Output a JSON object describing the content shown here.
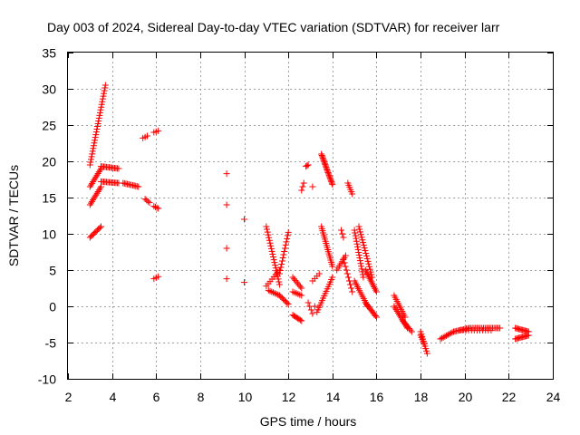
{
  "chart_data": {
    "type": "scatter",
    "title": "Day 003 of 2024, Sidereal Day-to-day VTEC variation (SDTVAR) for receiver larr",
    "xlabel": "GPS time / hours",
    "ylabel": "SDTVAR / TECUs",
    "xlim": [
      2,
      24
    ],
    "ylim": [
      -10,
      35
    ],
    "xticks": [
      2,
      4,
      6,
      8,
      10,
      12,
      14,
      16,
      18,
      20,
      22,
      24
    ],
    "yticks": [
      -10,
      -5,
      0,
      5,
      10,
      15,
      20,
      25,
      30,
      35
    ],
    "grid": true,
    "marker": "+",
    "color": "#ff0000",
    "segments": [
      {
        "from": [
          3.0,
          19.5
        ],
        "to": [
          3.7,
          30.5
        ],
        "n": 30
      },
      {
        "from": [
          3.0,
          16.5
        ],
        "to": [
          3.5,
          19.0
        ],
        "n": 12
      },
      {
        "from": [
          3.5,
          19.3
        ],
        "to": [
          4.3,
          19.0
        ],
        "n": 14
      },
      {
        "from": [
          3.0,
          14.0
        ],
        "to": [
          3.5,
          16.5
        ],
        "n": 12
      },
      {
        "from": [
          3.5,
          17.2
        ],
        "to": [
          4.3,
          17.0
        ],
        "n": 14
      },
      {
        "from": [
          4.5,
          17.0
        ],
        "to": [
          5.2,
          16.5
        ],
        "n": 12
      },
      {
        "from": [
          3.0,
          9.5
        ],
        "to": [
          3.5,
          11.0
        ],
        "n": 10
      },
      {
        "from": [
          5.4,
          23.2
        ],
        "to": [
          5.6,
          23.5
        ],
        "n": 3
      },
      {
        "from": [
          5.9,
          24.0
        ],
        "to": [
          6.1,
          24.2
        ],
        "n": 3
      },
      {
        "from": [
          5.5,
          14.8
        ],
        "to": [
          5.7,
          14.3
        ],
        "n": 4
      },
      {
        "from": [
          5.9,
          13.8
        ],
        "to": [
          6.1,
          13.5
        ],
        "n": 4
      },
      {
        "from": [
          5.9,
          3.8
        ],
        "to": [
          6.1,
          4.1
        ],
        "n": 3
      },
      {
        "from": [
          11.0,
          11.0
        ],
        "to": [
          11.6,
          3.0
        ],
        "n": 22
      },
      {
        "from": [
          11.0,
          2.8
        ],
        "to": [
          11.6,
          5.0
        ],
        "n": 8
      },
      {
        "from": [
          11.1,
          2.2
        ],
        "to": [
          11.6,
          1.5
        ],
        "n": 8
      },
      {
        "from": [
          11.6,
          4.5
        ],
        "to": [
          12.0,
          10.2
        ],
        "n": 14
      },
      {
        "from": [
          11.6,
          1.5
        ],
        "to": [
          12.0,
          0.3
        ],
        "n": 8
      },
      {
        "from": [
          12.2,
          4.0
        ],
        "to": [
          12.6,
          2.5
        ],
        "n": 8
      },
      {
        "from": [
          12.2,
          -1.2
        ],
        "to": [
          12.6,
          -2.0
        ],
        "n": 8
      },
      {
        "from": [
          12.2,
          2.0
        ],
        "to": [
          12.6,
          1.5
        ],
        "n": 6
      },
      {
        "from": [
          12.6,
          16.0
        ],
        "to": [
          12.7,
          17.0
        ],
        "n": 3
      },
      {
        "from": [
          12.8,
          19.3
        ],
        "to": [
          12.9,
          19.5
        ],
        "n": 3
      },
      {
        "from": [
          12.9,
          0.5
        ],
        "to": [
          13.1,
          -1.0
        ],
        "n": 4
      },
      {
        "from": [
          13.1,
          3.5
        ],
        "to": [
          13.4,
          4.5
        ],
        "n": 4
      },
      {
        "from": [
          13.5,
          21.0
        ],
        "to": [
          14.0,
          16.8
        ],
        "n": 24
      },
      {
        "from": [
          13.5,
          11.0
        ],
        "to": [
          14.0,
          5.5
        ],
        "n": 20
      },
      {
        "from": [
          13.3,
          -0.8
        ],
        "to": [
          14.0,
          4.0
        ],
        "n": 16
      },
      {
        "from": [
          14.2,
          5.0
        ],
        "to": [
          14.6,
          7.0
        ],
        "n": 8
      },
      {
        "from": [
          14.5,
          6.5
        ],
        "to": [
          14.9,
          2.0
        ],
        "n": 10
      },
      {
        "from": [
          14.7,
          17.0
        ],
        "to": [
          14.9,
          15.5
        ],
        "n": 6
      },
      {
        "from": [
          14.4,
          10.5
        ],
        "to": [
          14.5,
          9.5
        ],
        "n": 3
      },
      {
        "from": [
          15.0,
          10.5
        ],
        "to": [
          15.4,
          4.0
        ],
        "n": 18
      },
      {
        "from": [
          15.2,
          11.0
        ],
        "to": [
          15.8,
          4.0
        ],
        "n": 20
      },
      {
        "from": [
          15.0,
          3.5
        ],
        "to": [
          15.6,
          0.0
        ],
        "n": 14
      },
      {
        "from": [
          15.5,
          5.0
        ],
        "to": [
          16.0,
          2.0
        ],
        "n": 14
      },
      {
        "from": [
          15.5,
          0.5
        ],
        "to": [
          16.0,
          -1.5
        ],
        "n": 12
      },
      {
        "from": [
          16.8,
          0.0
        ],
        "to": [
          17.4,
          -3.0
        ],
        "n": 14
      },
      {
        "from": [
          16.8,
          1.5
        ],
        "to": [
          17.3,
          -1.5
        ],
        "n": 12
      },
      {
        "from": [
          17.2,
          -2.0
        ],
        "to": [
          17.6,
          -3.5
        ],
        "n": 8
      },
      {
        "from": [
          18.0,
          -3.5
        ],
        "to": [
          18.3,
          -6.5
        ],
        "n": 10
      },
      {
        "from": [
          18.0,
          -4.0
        ],
        "to": [
          18.2,
          -5.5
        ],
        "n": 6
      },
      {
        "from": [
          18.9,
          -4.5
        ],
        "to": [
          19.5,
          -3.5
        ],
        "n": 10
      },
      {
        "from": [
          19.5,
          -3.5
        ],
        "to": [
          20.2,
          -3.0
        ],
        "n": 12
      },
      {
        "from": [
          20.2,
          -3.0
        ],
        "to": [
          21.0,
          -3.0
        ],
        "n": 12
      },
      {
        "from": [
          21.0,
          -3.0
        ],
        "to": [
          21.6,
          -3.0
        ],
        "n": 10
      },
      {
        "from": [
          19.8,
          -3.3
        ],
        "to": [
          21.2,
          -3.3
        ],
        "n": 12
      },
      {
        "from": [
          22.3,
          -3.0
        ],
        "to": [
          22.9,
          -3.5
        ],
        "n": 12
      },
      {
        "from": [
          22.3,
          -4.5
        ],
        "to": [
          22.9,
          -4.0
        ],
        "n": 12
      }
    ],
    "points": [
      [
        9.2,
        18.3
      ],
      [
        9.2,
        14.0
      ],
      [
        9.2,
        8.0
      ],
      [
        9.2,
        3.8
      ],
      [
        10.0,
        12.0
      ],
      [
        10.0,
        3.3
      ],
      [
        13.1,
        16.5
      ],
      [
        13.1,
        -1.0
      ],
      [
        13.2,
        0.0
      ]
    ]
  }
}
